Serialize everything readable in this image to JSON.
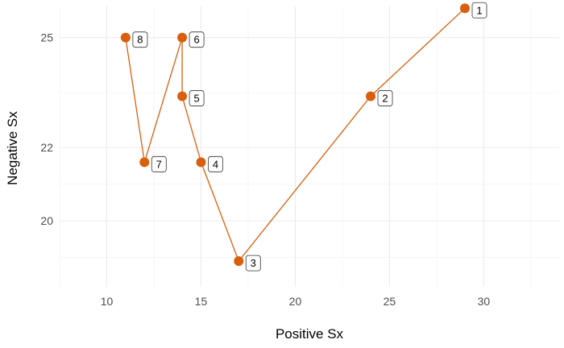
{
  "chart_data": {
    "type": "line",
    "title": "",
    "xlabel": "Positive Sx",
    "ylabel": "Negative Sx",
    "xlim": [
      7.5,
      34
    ],
    "ylim": [
      18.2,
      25.85
    ],
    "x_ticks": [
      10,
      15,
      20,
      25,
      30
    ],
    "y_ticks": [
      20,
      22,
      25
    ],
    "grid": true,
    "legend": "none",
    "series": [
      {
        "color": "#d95f0e",
        "points": [
          {
            "label": "1",
            "x": 29,
            "y": 25.8
          },
          {
            "label": "2",
            "x": 24,
            "y": 23.4
          },
          {
            "label": "3",
            "x": 17,
            "y": 18.9
          },
          {
            "label": "4",
            "x": 15,
            "y": 21.6
          },
          {
            "label": "5",
            "x": 14,
            "y": 23.4
          },
          {
            "label": "6",
            "x": 14,
            "y": 25
          },
          {
            "label": "7",
            "x": 12,
            "y": 21.6
          },
          {
            "label": "8",
            "x": 11,
            "y": 25
          }
        ]
      }
    ]
  }
}
